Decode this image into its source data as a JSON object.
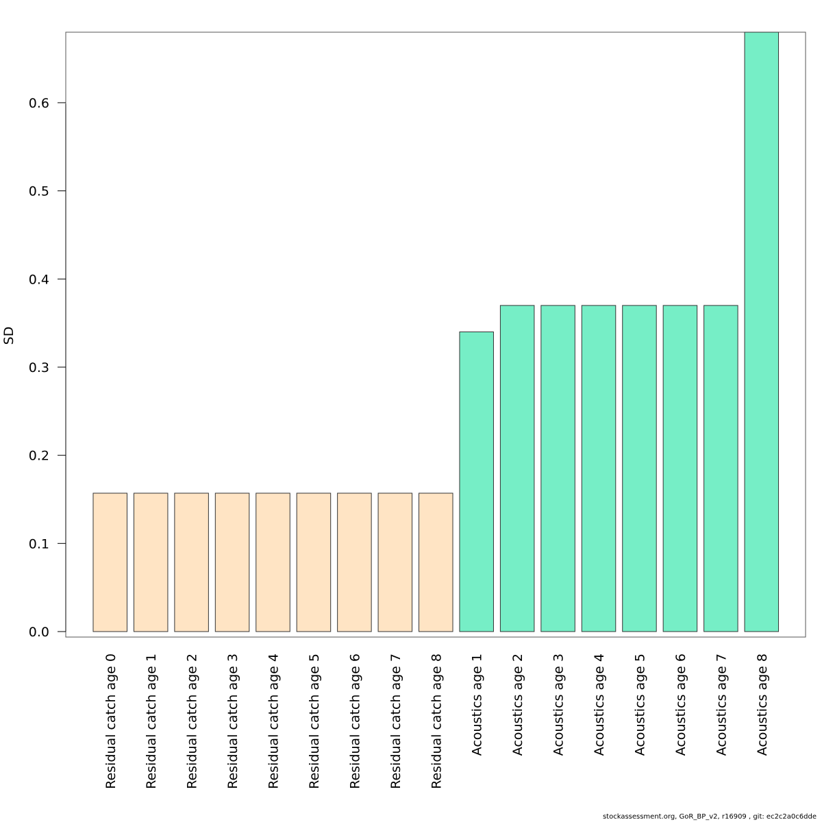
{
  "chart_data": {
    "type": "bar",
    "title": "",
    "xlabel": "",
    "ylabel": "SD",
    "ylim": [
      0,
      0.68
    ],
    "yticks": [
      "0.0",
      "0.1",
      "0.2",
      "0.3",
      "0.4",
      "0.5",
      "0.6"
    ],
    "grid": false,
    "categories": [
      "Residual catch age 0",
      "Residual catch age 1",
      "Residual catch age 2",
      "Residual catch age 3",
      "Residual catch age 4",
      "Residual catch age 5",
      "Residual catch age 6",
      "Residual catch age 7",
      "Residual catch age 8",
      "Acoustics age 1",
      "Acoustics age 2",
      "Acoustics age 3",
      "Acoustics age 4",
      "Acoustics age 5",
      "Acoustics age 6",
      "Acoustics age 7",
      "Acoustics age 8"
    ],
    "values": [
      0.157,
      0.157,
      0.157,
      0.157,
      0.157,
      0.157,
      0.157,
      0.157,
      0.157,
      0.34,
      0.37,
      0.37,
      0.37,
      0.37,
      0.37,
      0.37,
      0.68
    ],
    "bar_colors": [
      "#FFE4C4",
      "#FFE4C4",
      "#FFE4C4",
      "#FFE4C4",
      "#FFE4C4",
      "#FFE4C4",
      "#FFE4C4",
      "#FFE4C4",
      "#FFE4C4",
      "#76EEC6",
      "#76EEC6",
      "#76EEC6",
      "#76EEC6",
      "#76EEC6",
      "#76EEC6",
      "#76EEC6",
      "#76EEC6"
    ]
  },
  "footer": "stockassessment.org, GoR_BP_v2, r16909 , git: ec2c2a0c6dde"
}
